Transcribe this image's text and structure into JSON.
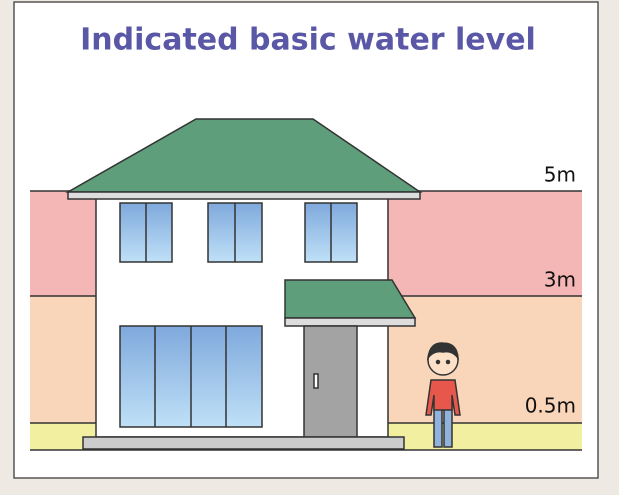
{
  "title": "Indicated basic water level",
  "levels": [
    "5m",
    "3m",
    "0.5m"
  ]
}
